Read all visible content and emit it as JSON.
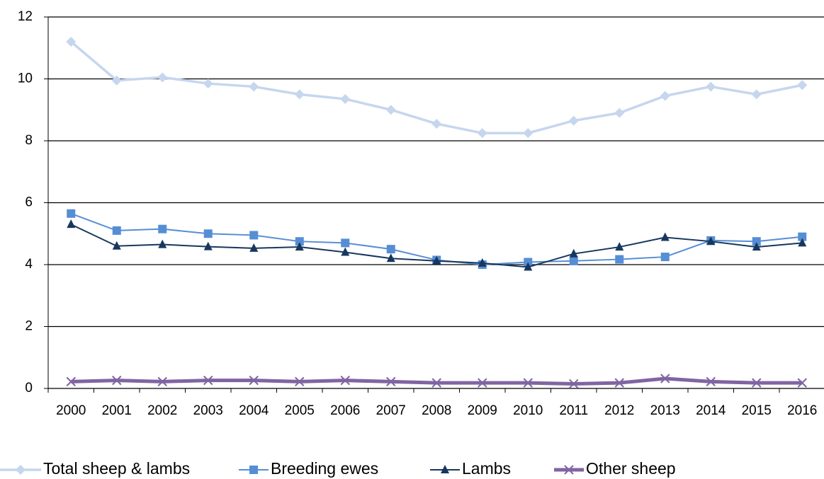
{
  "chart_data": {
    "type": "line",
    "categories": [
      "2000",
      "2001",
      "2002",
      "2003",
      "2004",
      "2005",
      "2006",
      "2007",
      "2008",
      "2009",
      "2010",
      "2011",
      "2012",
      "2013",
      "2014",
      "2015",
      "2016"
    ],
    "series": [
      {
        "name": "Total sheep & lambs",
        "color": "#c6d6ee",
        "marker": "diamond",
        "values": [
          11.2,
          9.95,
          10.05,
          9.85,
          9.75,
          9.5,
          9.35,
          9.0,
          8.55,
          8.25,
          8.25,
          8.65,
          8.9,
          9.45,
          9.75,
          9.5,
          9.8
        ]
      },
      {
        "name": "Breeding ewes",
        "color": "#558ed5",
        "marker": "square",
        "values": [
          5.65,
          5.1,
          5.15,
          5.0,
          4.95,
          4.75,
          4.7,
          4.5,
          4.15,
          4.0,
          4.08,
          4.12,
          4.17,
          4.25,
          4.78,
          4.75,
          4.9
        ]
      },
      {
        "name": "Lambs",
        "color": "#17375e",
        "marker": "triangle",
        "values": [
          5.3,
          4.6,
          4.65,
          4.58,
          4.53,
          4.57,
          4.4,
          4.2,
          4.12,
          4.05,
          3.92,
          4.35,
          4.57,
          4.88,
          4.75,
          4.57,
          4.7
        ]
      },
      {
        "name": "Other sheep",
        "color": "#8064a2",
        "marker": "x",
        "values": [
          0.22,
          0.26,
          0.22,
          0.26,
          0.26,
          0.22,
          0.26,
          0.22,
          0.18,
          0.18,
          0.18,
          0.15,
          0.18,
          0.32,
          0.22,
          0.18,
          0.18
        ]
      }
    ],
    "ylim": [
      0,
      12
    ],
    "yticks": [
      0,
      2,
      4,
      6,
      8,
      10,
      12
    ],
    "grid": true,
    "legend": "bottom"
  }
}
